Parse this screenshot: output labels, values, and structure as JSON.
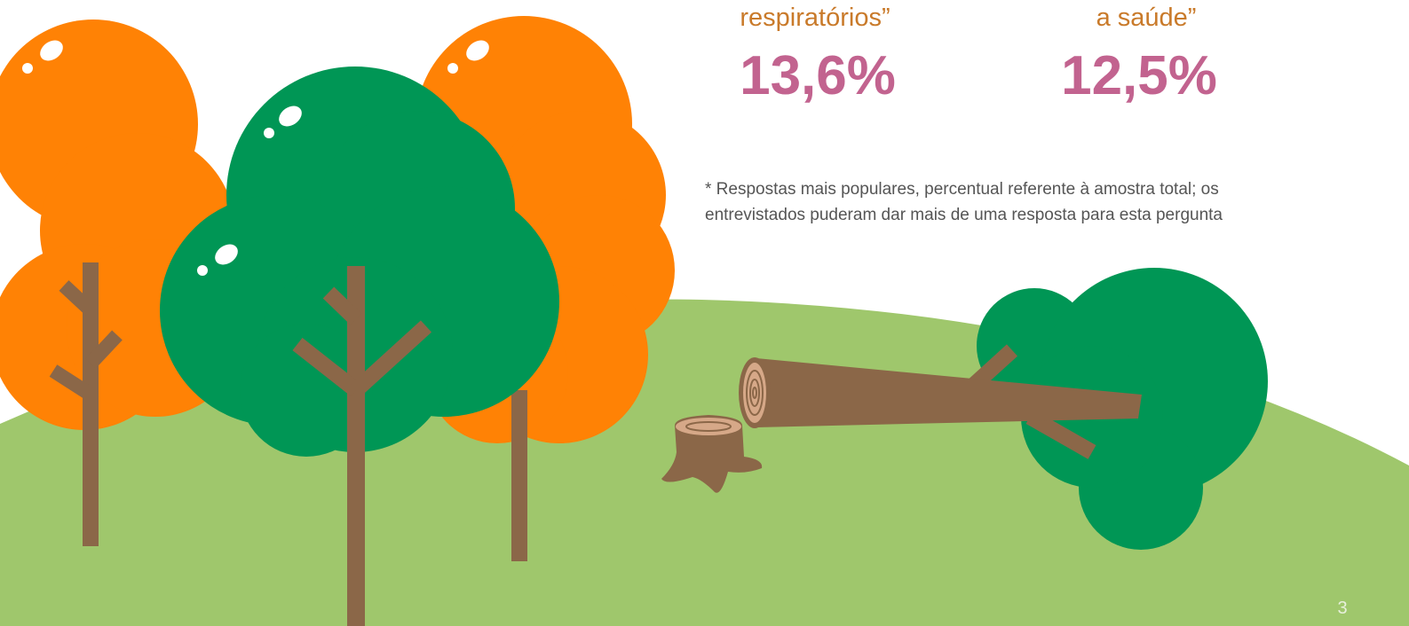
{
  "stats": [
    {
      "label": "respiratórios”",
      "value": "13,6%"
    },
    {
      "label": "a saúde”",
      "value": "12,5%"
    }
  ],
  "footnote": [
    "* Respostas mais populares, percentual referente à amostra total; os",
    "entrevistados puderam dar mais de uma resposta para esta pergunta"
  ],
  "page_number": "3"
}
